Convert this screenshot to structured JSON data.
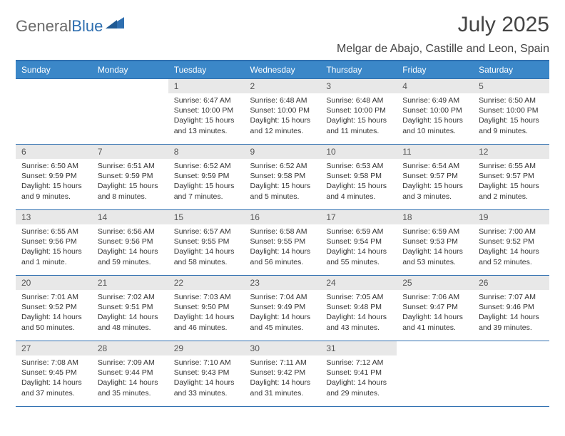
{
  "logo": {
    "word1": "General",
    "word2": "Blue"
  },
  "title": "July 2025",
  "location": "Melgar de Abajo, Castille and Leon, Spain",
  "colors": {
    "header_bg": "#3b87c8",
    "header_border": "#2f6fb0",
    "daynum_bg": "#e8e8e8",
    "text": "#333333"
  },
  "weekdays": [
    "Sunday",
    "Monday",
    "Tuesday",
    "Wednesday",
    "Thursday",
    "Friday",
    "Saturday"
  ],
  "weeks": [
    [
      null,
      null,
      {
        "n": "1",
        "sr": "Sunrise: 6:47 AM",
        "ss": "Sunset: 10:00 PM",
        "dl": "Daylight: 15 hours and 13 minutes."
      },
      {
        "n": "2",
        "sr": "Sunrise: 6:48 AM",
        "ss": "Sunset: 10:00 PM",
        "dl": "Daylight: 15 hours and 12 minutes."
      },
      {
        "n": "3",
        "sr": "Sunrise: 6:48 AM",
        "ss": "Sunset: 10:00 PM",
        "dl": "Daylight: 15 hours and 11 minutes."
      },
      {
        "n": "4",
        "sr": "Sunrise: 6:49 AM",
        "ss": "Sunset: 10:00 PM",
        "dl": "Daylight: 15 hours and 10 minutes."
      },
      {
        "n": "5",
        "sr": "Sunrise: 6:50 AM",
        "ss": "Sunset: 10:00 PM",
        "dl": "Daylight: 15 hours and 9 minutes."
      }
    ],
    [
      {
        "n": "6",
        "sr": "Sunrise: 6:50 AM",
        "ss": "Sunset: 9:59 PM",
        "dl": "Daylight: 15 hours and 9 minutes."
      },
      {
        "n": "7",
        "sr": "Sunrise: 6:51 AM",
        "ss": "Sunset: 9:59 PM",
        "dl": "Daylight: 15 hours and 8 minutes."
      },
      {
        "n": "8",
        "sr": "Sunrise: 6:52 AM",
        "ss": "Sunset: 9:59 PM",
        "dl": "Daylight: 15 hours and 7 minutes."
      },
      {
        "n": "9",
        "sr": "Sunrise: 6:52 AM",
        "ss": "Sunset: 9:58 PM",
        "dl": "Daylight: 15 hours and 5 minutes."
      },
      {
        "n": "10",
        "sr": "Sunrise: 6:53 AM",
        "ss": "Sunset: 9:58 PM",
        "dl": "Daylight: 15 hours and 4 minutes."
      },
      {
        "n": "11",
        "sr": "Sunrise: 6:54 AM",
        "ss": "Sunset: 9:57 PM",
        "dl": "Daylight: 15 hours and 3 minutes."
      },
      {
        "n": "12",
        "sr": "Sunrise: 6:55 AM",
        "ss": "Sunset: 9:57 PM",
        "dl": "Daylight: 15 hours and 2 minutes."
      }
    ],
    [
      {
        "n": "13",
        "sr": "Sunrise: 6:55 AM",
        "ss": "Sunset: 9:56 PM",
        "dl": "Daylight: 15 hours and 1 minute."
      },
      {
        "n": "14",
        "sr": "Sunrise: 6:56 AM",
        "ss": "Sunset: 9:56 PM",
        "dl": "Daylight: 14 hours and 59 minutes."
      },
      {
        "n": "15",
        "sr": "Sunrise: 6:57 AM",
        "ss": "Sunset: 9:55 PM",
        "dl": "Daylight: 14 hours and 58 minutes."
      },
      {
        "n": "16",
        "sr": "Sunrise: 6:58 AM",
        "ss": "Sunset: 9:55 PM",
        "dl": "Daylight: 14 hours and 56 minutes."
      },
      {
        "n": "17",
        "sr": "Sunrise: 6:59 AM",
        "ss": "Sunset: 9:54 PM",
        "dl": "Daylight: 14 hours and 55 minutes."
      },
      {
        "n": "18",
        "sr": "Sunrise: 6:59 AM",
        "ss": "Sunset: 9:53 PM",
        "dl": "Daylight: 14 hours and 53 minutes."
      },
      {
        "n": "19",
        "sr": "Sunrise: 7:00 AM",
        "ss": "Sunset: 9:52 PM",
        "dl": "Daylight: 14 hours and 52 minutes."
      }
    ],
    [
      {
        "n": "20",
        "sr": "Sunrise: 7:01 AM",
        "ss": "Sunset: 9:52 PM",
        "dl": "Daylight: 14 hours and 50 minutes."
      },
      {
        "n": "21",
        "sr": "Sunrise: 7:02 AM",
        "ss": "Sunset: 9:51 PM",
        "dl": "Daylight: 14 hours and 48 minutes."
      },
      {
        "n": "22",
        "sr": "Sunrise: 7:03 AM",
        "ss": "Sunset: 9:50 PM",
        "dl": "Daylight: 14 hours and 46 minutes."
      },
      {
        "n": "23",
        "sr": "Sunrise: 7:04 AM",
        "ss": "Sunset: 9:49 PM",
        "dl": "Daylight: 14 hours and 45 minutes."
      },
      {
        "n": "24",
        "sr": "Sunrise: 7:05 AM",
        "ss": "Sunset: 9:48 PM",
        "dl": "Daylight: 14 hours and 43 minutes."
      },
      {
        "n": "25",
        "sr": "Sunrise: 7:06 AM",
        "ss": "Sunset: 9:47 PM",
        "dl": "Daylight: 14 hours and 41 minutes."
      },
      {
        "n": "26",
        "sr": "Sunrise: 7:07 AM",
        "ss": "Sunset: 9:46 PM",
        "dl": "Daylight: 14 hours and 39 minutes."
      }
    ],
    [
      {
        "n": "27",
        "sr": "Sunrise: 7:08 AM",
        "ss": "Sunset: 9:45 PM",
        "dl": "Daylight: 14 hours and 37 minutes."
      },
      {
        "n": "28",
        "sr": "Sunrise: 7:09 AM",
        "ss": "Sunset: 9:44 PM",
        "dl": "Daylight: 14 hours and 35 minutes."
      },
      {
        "n": "29",
        "sr": "Sunrise: 7:10 AM",
        "ss": "Sunset: 9:43 PM",
        "dl": "Daylight: 14 hours and 33 minutes."
      },
      {
        "n": "30",
        "sr": "Sunrise: 7:11 AM",
        "ss": "Sunset: 9:42 PM",
        "dl": "Daylight: 14 hours and 31 minutes."
      },
      {
        "n": "31",
        "sr": "Sunrise: 7:12 AM",
        "ss": "Sunset: 9:41 PM",
        "dl": "Daylight: 14 hours and 29 minutes."
      },
      null,
      null
    ]
  ]
}
